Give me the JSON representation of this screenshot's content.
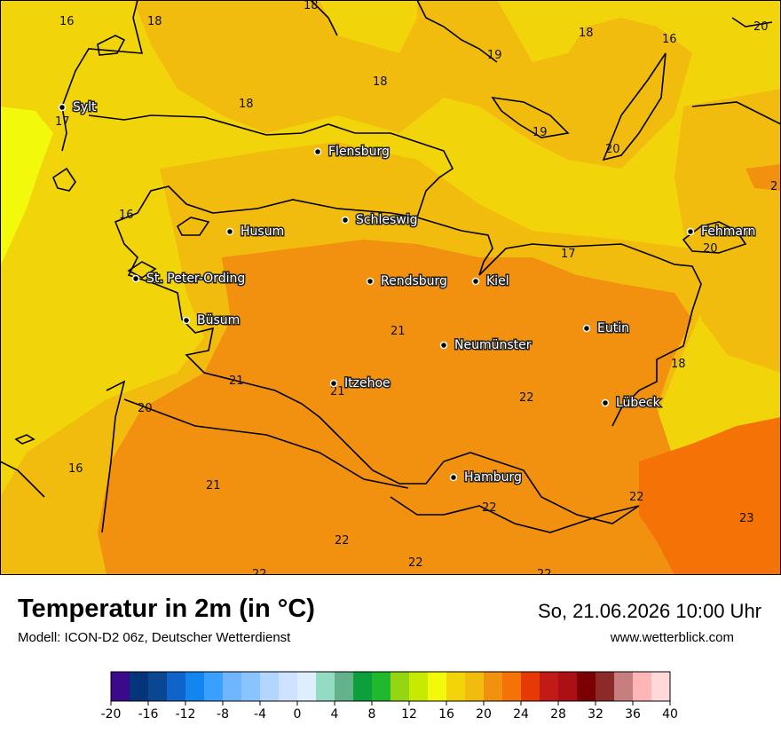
{
  "title": "Temperatur in 2m (in °C)",
  "model": "Modell: ICON-D2 06z, Deutscher Wetterdienst",
  "datetime": "So, 21.06.2026 10:00 Uhr",
  "website": "www.wetterblick.com",
  "cities": [
    {
      "name": "Sylt"
    },
    {
      "name": "Flensburg"
    },
    {
      "name": "Schleswig"
    },
    {
      "name": "Husum"
    },
    {
      "name": "Fehmarn"
    },
    {
      "name": "St. Peter-Ording"
    },
    {
      "name": "Rendsburg"
    },
    {
      "name": "Kiel"
    },
    {
      "name": "Büsum"
    },
    {
      "name": "Eutin"
    },
    {
      "name": "Neumünster"
    },
    {
      "name": "Itzehoe"
    },
    {
      "name": "Lübeck"
    },
    {
      "name": "Hamburg"
    }
  ],
  "isolabels": [
    "16",
    "18",
    "18",
    "18",
    "20",
    "18",
    "18",
    "19",
    "16",
    "17",
    "19",
    "20",
    "16",
    "2",
    "20",
    "17",
    "21",
    "18",
    "21",
    "21",
    "22",
    "20",
    "16",
    "21",
    "22",
    "22",
    "23",
    "22",
    "22",
    "22",
    "22"
  ],
  "colorscale": {
    "colors": [
      "#3b0a8a",
      "#04357a",
      "#0a4790",
      "#1063c8",
      "#1385ef",
      "#3aa0ff",
      "#6fb6ff",
      "#8ac4ff",
      "#b2d6ff",
      "#cde3ff",
      "#dfeeff",
      "#93dcc1",
      "#63b28c",
      "#0d9f3c",
      "#20b82c",
      "#95d613",
      "#c8ea00",
      "#f2f90a",
      "#f2d40a",
      "#f2bc0e",
      "#f29010",
      "#f57206",
      "#e63a06",
      "#c21a16",
      "#ac1016",
      "#7a0004",
      "#8c2a2a",
      "#c77e7e",
      "#feb6b6",
      "#ffd9da"
    ],
    "ticks": [
      "-20",
      "-16",
      "-12",
      "-8",
      "-4",
      "0",
      "4",
      "8",
      "12",
      "16",
      "20",
      "24",
      "28",
      "32",
      "36",
      "40"
    ]
  }
}
